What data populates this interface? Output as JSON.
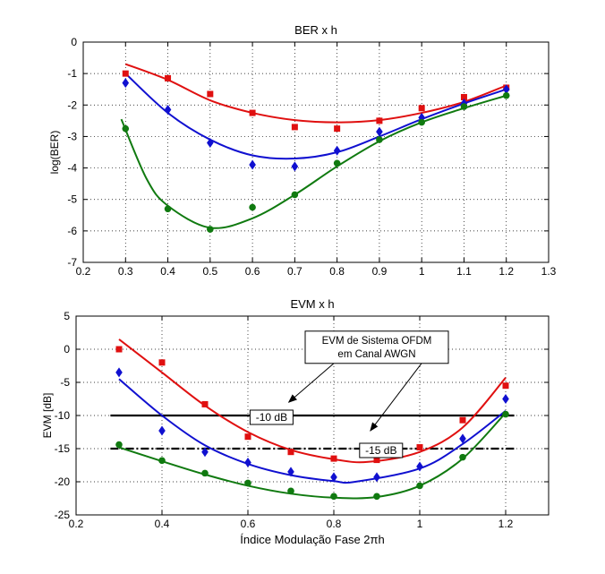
{
  "chart_data": [
    {
      "type": "scatter",
      "title": "BER x h",
      "xlabel": "",
      "ylabel": "log(BER)",
      "xlim": [
        0.2,
        1.3
      ],
      "ylim": [
        -7,
        0
      ],
      "xticks": [
        0.2,
        0.3,
        0.4,
        0.5,
        0.6,
        0.7,
        0.8,
        0.9,
        1,
        1.1,
        1.2,
        1.3
      ],
      "yticks": [
        -7,
        -6,
        -5,
        -4,
        -3,
        -2,
        -1,
        0
      ],
      "grid": true,
      "series": [
        {
          "color": "#e01010",
          "marker": "square",
          "points": [
            [
              0.3,
              -1.0
            ],
            [
              0.4,
              -1.15
            ],
            [
              0.5,
              -1.65
            ],
            [
              0.6,
              -2.25
            ],
            [
              0.7,
              -2.7
            ],
            [
              0.8,
              -2.75
            ],
            [
              0.9,
              -2.5
            ],
            [
              1.0,
              -2.1
            ],
            [
              1.1,
              -1.75
            ],
            [
              1.2,
              -1.45
            ]
          ],
          "fit": [
            [
              0.3,
              -0.7
            ],
            [
              0.4,
              -1.2
            ],
            [
              0.5,
              -1.85
            ],
            [
              0.6,
              -2.25
            ],
            [
              0.7,
              -2.48
            ],
            [
              0.8,
              -2.55
            ],
            [
              0.9,
              -2.48
            ],
            [
              1.0,
              -2.25
            ],
            [
              1.1,
              -1.9
            ],
            [
              1.2,
              -1.38
            ]
          ]
        },
        {
          "color": "#1010d0",
          "marker": "diamond",
          "points": [
            [
              0.3,
              -1.3
            ],
            [
              0.4,
              -2.15
            ],
            [
              0.5,
              -3.2
            ],
            [
              0.6,
              -3.9
            ],
            [
              0.7,
              -3.95
            ],
            [
              0.8,
              -3.45
            ],
            [
              0.9,
              -2.85
            ],
            [
              1.0,
              -2.4
            ],
            [
              1.1,
              -1.95
            ],
            [
              1.2,
              -1.5
            ]
          ],
          "fit": [
            [
              0.3,
              -1.0
            ],
            [
              0.4,
              -2.25
            ],
            [
              0.5,
              -3.1
            ],
            [
              0.6,
              -3.6
            ],
            [
              0.7,
              -3.7
            ],
            [
              0.8,
              -3.5
            ],
            [
              0.9,
              -3.0
            ],
            [
              1.0,
              -2.45
            ],
            [
              1.1,
              -1.95
            ],
            [
              1.2,
              -1.5
            ]
          ]
        },
        {
          "color": "#107a10",
          "marker": "circle",
          "points": [
            [
              0.3,
              -2.75
            ],
            [
              0.4,
              -5.3
            ],
            [
              0.5,
              -5.95
            ],
            [
              0.6,
              -5.25
            ],
            [
              0.7,
              -4.85
            ],
            [
              0.8,
              -3.85
            ],
            [
              0.9,
              -3.1
            ],
            [
              1.0,
              -2.55
            ],
            [
              1.1,
              -2.05
            ],
            [
              1.2,
              -1.7
            ]
          ],
          "fit": [
            [
              0.29,
              -2.45
            ],
            [
              0.35,
              -4.35
            ],
            [
              0.4,
              -5.2
            ],
            [
              0.5,
              -5.9
            ],
            [
              0.6,
              -5.6
            ],
            [
              0.7,
              -4.85
            ],
            [
              0.8,
              -3.95
            ],
            [
              0.9,
              -3.15
            ],
            [
              1.0,
              -2.55
            ],
            [
              1.1,
              -2.1
            ],
            [
              1.2,
              -1.7
            ]
          ]
        }
      ]
    },
    {
      "type": "scatter",
      "title": "EVM x h",
      "xlabel": "Índice Modulação Fase 2πh",
      "ylabel": "EVM [dB]",
      "xlim": [
        0.2,
        1.3
      ],
      "ylim": [
        -25,
        5
      ],
      "xticks": [
        0.2,
        0.4,
        0.6,
        0.8,
        1,
        1.2
      ],
      "yticks": [
        -25,
        -20,
        -15,
        -10,
        -5,
        0,
        5
      ],
      "grid": true,
      "series": [
        {
          "color": "#e01010",
          "marker": "square",
          "points": [
            [
              0.3,
              0.0
            ],
            [
              0.4,
              -2.0
            ],
            [
              0.5,
              -8.3
            ],
            [
              0.6,
              -13.2
            ],
            [
              0.7,
              -15.5
            ],
            [
              0.8,
              -16.5
            ],
            [
              0.9,
              -16.7
            ],
            [
              1.0,
              -14.8
            ],
            [
              1.1,
              -10.7
            ],
            [
              1.2,
              -5.5
            ]
          ],
          "fit": [
            [
              0.3,
              1.5
            ],
            [
              0.4,
              -3.5
            ],
            [
              0.5,
              -8.5
            ],
            [
              0.6,
              -12.5
            ],
            [
              0.7,
              -15.2
            ],
            [
              0.8,
              -16.6
            ],
            [
              0.88,
              -17.0
            ],
            [
              1.0,
              -15.5
            ],
            [
              1.1,
              -11.8
            ],
            [
              1.2,
              -4.3
            ]
          ]
        },
        {
          "color": "#1010d0",
          "marker": "diamond",
          "points": [
            [
              0.3,
              -3.5
            ],
            [
              0.4,
              -12.3
            ],
            [
              0.5,
              -15.5
            ],
            [
              0.6,
              -17.1
            ],
            [
              0.7,
              -18.5
            ],
            [
              0.8,
              -19.3
            ],
            [
              0.9,
              -19.3
            ],
            [
              1.0,
              -17.7
            ],
            [
              1.1,
              -13.5
            ],
            [
              1.2,
              -7.5
            ]
          ],
          "fit": [
            [
              0.3,
              -4.5
            ],
            [
              0.4,
              -10.0
            ],
            [
              0.5,
              -14.5
            ],
            [
              0.6,
              -17.3
            ],
            [
              0.7,
              -19.0
            ],
            [
              0.8,
              -19.9
            ],
            [
              0.85,
              -20.0
            ],
            [
              1.0,
              -18.0
            ],
            [
              1.1,
              -14.3
            ],
            [
              1.2,
              -9.3
            ]
          ]
        },
        {
          "color": "#107a10",
          "marker": "circle",
          "points": [
            [
              0.3,
              -14.4
            ],
            [
              0.4,
              -16.8
            ],
            [
              0.5,
              -18.7
            ],
            [
              0.6,
              -20.2
            ],
            [
              0.7,
              -21.4
            ],
            [
              0.8,
              -22.2
            ],
            [
              0.9,
              -22.2
            ],
            [
              1.0,
              -20.6
            ],
            [
              1.1,
              -16.3
            ],
            [
              1.2,
              -9.8
            ]
          ],
          "fit": [
            [
              0.3,
              -14.8
            ],
            [
              0.4,
              -16.9
            ],
            [
              0.5,
              -18.9
            ],
            [
              0.6,
              -20.6
            ],
            [
              0.7,
              -21.8
            ],
            [
              0.8,
              -22.4
            ],
            [
              0.9,
              -22.3
            ],
            [
              1.0,
              -20.6
            ],
            [
              1.1,
              -16.5
            ],
            [
              1.2,
              -9.6
            ]
          ]
        }
      ],
      "reference_lines": [
        {
          "y": -10,
          "style": "solid",
          "label": "-10 dB",
          "x_range": [
            0.28,
            1.22
          ]
        },
        {
          "y": -15,
          "style": "dash-dot",
          "label": "-15 dB",
          "x_range": [
            0.28,
            1.22
          ]
        }
      ],
      "annotation": {
        "lines": [
          "EVM de Sistema OFDM",
          "em Canal AWGN"
        ]
      }
    }
  ]
}
